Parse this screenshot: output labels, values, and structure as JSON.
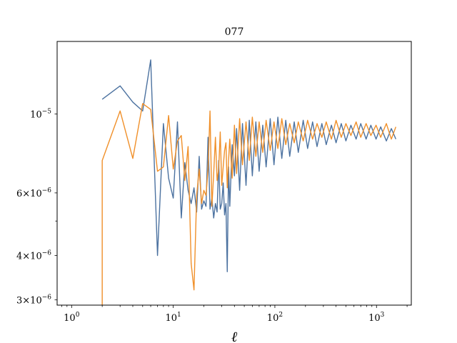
{
  "chart_data": {
    "type": "line",
    "title": "077",
    "xlabel": "ℓ",
    "ylabel": "",
    "xscale": "log",
    "yscale": "log",
    "xlim": [
      0.72,
      2200
    ],
    "ylim": [
      2.9e-06,
      1.6e-05
    ],
    "x_major_ticks": [
      {
        "value": 1,
        "base": "10",
        "exp": "0"
      },
      {
        "value": 10,
        "base": "10",
        "exp": "1"
      },
      {
        "value": 100,
        "base": "10",
        "exp": "2"
      },
      {
        "value": 1000,
        "base": "10",
        "exp": "3"
      }
    ],
    "y_tick_labels": [
      {
        "value": 1e-05,
        "mant": "",
        "base": "10",
        "exp": "−5"
      },
      {
        "value": 6e-06,
        "mant": "6×",
        "base": "10",
        "exp": "−6"
      },
      {
        "value": 4e-06,
        "mant": "4×",
        "base": "10",
        "exp": "−6"
      },
      {
        "value": 3e-06,
        "mant": "3×",
        "base": "10",
        "exp": "−6"
      }
    ],
    "y_minor_ticks": [
      5e-06
    ],
    "grid": false,
    "legend": "none",
    "colors": {
      "series1": "#4c72a0",
      "series2": "#f0902a"
    },
    "series": [
      {
        "color": "#4c72a0",
        "x": [
          2,
          3,
          4,
          5,
          6,
          7,
          8,
          9,
          10,
          11,
          12,
          13,
          14,
          15,
          16,
          17,
          18,
          19,
          20,
          21,
          22,
          23,
          24,
          25,
          26,
          27,
          28,
          29,
          30,
          31,
          32,
          33,
          34,
          35,
          36,
          38,
          40,
          42,
          45,
          48,
          52,
          56,
          60,
          65,
          70,
          76,
          82,
          90,
          98,
          107,
          117,
          128,
          140,
          155,
          170,
          190,
          210,
          235,
          260,
          290,
          320,
          360,
          400,
          450,
          500,
          560,
          630,
          700,
          790,
          880,
          990,
          1100,
          1250,
          1400,
          1550
        ],
        "y": [
          1.1e-05,
          1.2e-05,
          1.08e-05,
          1.02e-05,
          1.42e-05,
          4e-06,
          9.4e-06,
          6.6e-06,
          5.8e-06,
          9.5e-06,
          5.1e-06,
          7.3e-06,
          6.1e-06,
          5.6e-06,
          6.2e-06,
          5.3e-06,
          7.6e-06,
          5.4e-06,
          5.7e-06,
          5.5e-06,
          8.6e-06,
          5.4e-06,
          5.8e-06,
          5.1e-06,
          5.6e-06,
          5.3e-06,
          7.4e-06,
          5.4e-06,
          5.6e-06,
          6.4e-06,
          5.2e-06,
          5.6e-06,
          3.6e-06,
          7.1e-06,
          5.5e-06,
          8.2e-06,
          6.7e-06,
          9.1e-06,
          6.1e-06,
          9.4e-06,
          6.3e-06,
          9.6e-06,
          6.7e-06,
          9.5e-06,
          6.9e-06,
          9.3e-06,
          7.1e-06,
          9.7e-06,
          7.2e-06,
          9.8e-06,
          7.5e-06,
          9.6e-06,
          7.6e-06,
          9.5e-06,
          7.8e-06,
          9.6e-06,
          8e-06,
          9.5e-06,
          8.1e-06,
          9.4e-06,
          8.2e-06,
          9.3e-06,
          8.3e-06,
          9.4e-06,
          8.4e-06,
          9.3e-06,
          8.5e-06,
          9.4e-06,
          8.5e-06,
          9.3e-06,
          8.5e-06,
          9.2e-06,
          8.4e-06,
          9.1e-06,
          8.5e-06
        ]
      },
      {
        "color": "#f0902a",
        "x": [
          2,
          2,
          3,
          4,
          5,
          6,
          7,
          8,
          9,
          10,
          11,
          12,
          13,
          14,
          15,
          16,
          17,
          18,
          19,
          20,
          21,
          22,
          23,
          24,
          25,
          26,
          27,
          28,
          29,
          30,
          31,
          32,
          33,
          34,
          35,
          36,
          38,
          40,
          42,
          45,
          48,
          52,
          56,
          60,
          65,
          70,
          76,
          82,
          90,
          98,
          107,
          117,
          128,
          140,
          155,
          170,
          190,
          210,
          235,
          260,
          290,
          320,
          360,
          400,
          450,
          500,
          560,
          630,
          700,
          790,
          880,
          990,
          1100,
          1250,
          1400,
          1550
        ],
        "y": [
          2.8e-06,
          7.4e-06,
          1.02e-05,
          7.5e-06,
          1.07e-05,
          1.03e-05,
          6.9e-06,
          7.1e-06,
          9.9e-06,
          7e-06,
          8.4e-06,
          8.7e-06,
          6.5e-06,
          8.1e-06,
          3.8e-06,
          3.2e-06,
          5.9e-06,
          7e-06,
          5.6e-06,
          6.1e-06,
          5.9e-06,
          7e-06,
          1.02e-05,
          5.5e-06,
          6.8e-06,
          8.6e-06,
          6.5e-06,
          7e-06,
          8.9e-06,
          6.3e-06,
          7.1e-06,
          7.9e-06,
          8.3e-06,
          6.2e-06,
          7.4e-06,
          8.5e-06,
          6.6e-06,
          9.3e-06,
          6.8e-06,
          9.7e-06,
          7.2e-06,
          9.5e-06,
          7.4e-06,
          9.8e-06,
          7.6e-06,
          9.5e-06,
          7.8e-06,
          9.6e-06,
          7.9e-06,
          9.5e-06,
          8e-06,
          9.7e-06,
          8.2e-06,
          9.4e-06,
          8.3e-06,
          9.5e-06,
          8.4e-06,
          9.6e-06,
          8.5e-06,
          9.4e-06,
          8.6e-06,
          9.5e-06,
          8.5e-06,
          9.6e-06,
          8.6e-06,
          9.4e-06,
          8.7e-06,
          9.5e-06,
          8.6e-06,
          9.4e-06,
          8.7e-06,
          9.3e-06,
          8.6e-06,
          9.4e-06,
          8.5e-06,
          9.2e-06
        ]
      }
    ]
  }
}
